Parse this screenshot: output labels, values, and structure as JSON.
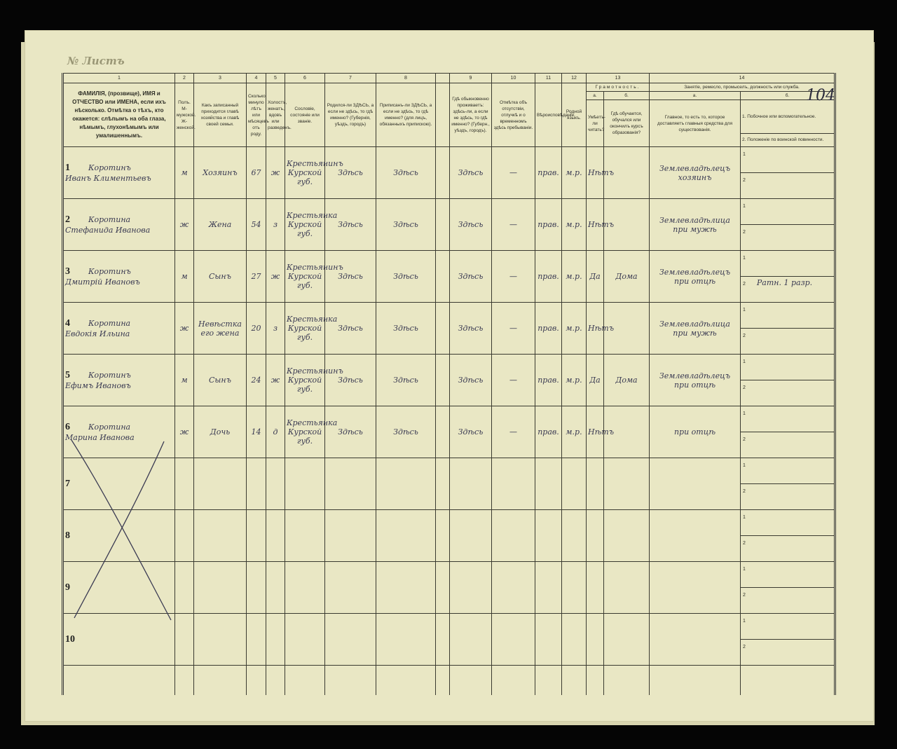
{
  "page_number": "104",
  "margin_note": "№ Листъ",
  "header": {
    "col_numbers": [
      "1",
      "2",
      "3",
      "4",
      "5",
      "6",
      "7",
      "8",
      "9",
      "10",
      "11",
      "12",
      "13",
      "14"
    ],
    "c1": "ФАМИЛІЯ, (прозвище), ИМЯ и ОТЧЕСТВО или ИМЕНА, если ихъ нѣсколько. Отмѣтка о тѣхъ, кто окажется: слѣпымъ на оба глаза, нѣмымъ, глухонѣмымъ или умалишеннымъ.",
    "c2": "Полъ. М-мужской. Ж-женской.",
    "c3": "Какъ записанный приходится главѣ хозяйства и главѣ своей семьи.",
    "c4": "Сколько минуло лѣтъ или мѣсяцевъ отъ роду.",
    "c5": "Холостъ, женатъ, вдовъ или разведенъ.",
    "c6": "Сословіе, состояніе или званіе.",
    "c7": "Родился-ли ЗДѢСЬ, а если не здѣсь, то гдѣ именно? (Губернія, уѣздъ, городъ)",
    "c8": "Приписанъ-ли ЗДѢСЬ, а если не здѣсь, то гдѣ именно? (для лицъ, обязанныхъ припискою).",
    "c9": "Гдѣ обыкновенно проживаетъ: здѣсь-ли, а если не здѣсь, то гдѣ именно? (Губерн., уѣздъ, городъ).",
    "c10": "Отмѣтка объ отсутствіи, отлучкѣ и о временномъ здѣсь пребываніи.",
    "c11": "Вѣроисповѣданіе.",
    "c12": "Родной языкъ.",
    "c13": "Грамотность.",
    "c13a_letter": "а.",
    "c13b_letter": "б.",
    "c13a": "Умѣетъ-ли читать?",
    "c13b": "Гдѣ обучается, обучался или окончилъ курсъ образованія?",
    "c14": "Занятіе, ремесло, промыселъ, должность или служба.",
    "c14a_letter": "а.",
    "c14b_letter": "б.",
    "c14a": "Главное, то есть то, которое доставляетъ главныя средства для существованія.",
    "c14b1": "1. Побочное или вспомогательное.",
    "c14b2": "2. Положеніе по воинской повинности."
  },
  "sub_labels": [
    "1",
    "2"
  ],
  "rows": [
    {
      "n": "1",
      "surname": "Коротинъ",
      "given": "Иванъ Климентьевъ",
      "sex": "м",
      "rel": "Хозяинъ",
      "age": "67",
      "mar": "ж",
      "estate": "Крестьянинъ Курской губ.",
      "born": "Здѣсь",
      "reg": "Здѣсь",
      "lives": "Здѣсь",
      "absent": "—",
      "rel2": "прав.",
      "lang": "м.р.",
      "read": "Нѣтъ",
      "school": "",
      "occ": "Землевладѣлецъ хозяинъ",
      "side": "",
      "mil": ""
    },
    {
      "n": "2",
      "surname": "Коротина",
      "given": "Стефанида Иванова",
      "sex": "ж",
      "rel": "Жена",
      "age": "54",
      "mar": "з",
      "estate": "Крестьянка Курской губ.",
      "born": "Здѣсь",
      "reg": "Здѣсь",
      "lives": "Здѣсь",
      "absent": "—",
      "rel2": "прав.",
      "lang": "м.р.",
      "read": "Нѣтъ",
      "school": "",
      "occ": "Землевладѣлица при мужѣ",
      "side": "",
      "mil": ""
    },
    {
      "n": "3",
      "surname": "Коротинъ",
      "given": "Дмитрій Ивановъ",
      "sex": "м",
      "rel": "Сынъ",
      "age": "27",
      "mar": "ж",
      "estate": "Крестьянинъ Курской губ.",
      "born": "Здѣсь",
      "reg": "Здѣсь",
      "lives": "Здѣсь",
      "absent": "—",
      "rel2": "прав.",
      "lang": "м.р.",
      "read": "Да",
      "school": "Дома",
      "occ": "Землевладѣлецъ при отцѣ",
      "side": "",
      "mil": "Ратн. 1 разр."
    },
    {
      "n": "4",
      "surname": "Коротина",
      "given": "Евдокія Ильина",
      "sex": "ж",
      "rel": "Невѣстка его жена",
      "age": "20",
      "mar": "з",
      "estate": "Крестьянка Курской губ.",
      "born": "Здѣсь",
      "reg": "Здѣсь",
      "lives": "Здѣсь",
      "absent": "—",
      "rel2": "прав.",
      "lang": "м.р.",
      "read": "Нѣтъ",
      "school": "",
      "occ": "Землевладѣлица при мужѣ",
      "side": "",
      "mil": ""
    },
    {
      "n": "5",
      "surname": "Коротинъ",
      "given": "Ефимъ Ивановъ",
      "sex": "м",
      "rel": "Сынъ",
      "age": "24",
      "mar": "ж",
      "estate": "Крестьянинъ Курской губ.",
      "born": "Здѣсь",
      "reg": "Здѣсь",
      "lives": "Здѣсь",
      "absent": "—",
      "rel2": "прав.",
      "lang": "м.р.",
      "read": "Да",
      "school": "Дома",
      "occ": "Землевладѣлецъ при отцѣ",
      "side": "",
      "mil": ""
    },
    {
      "n": "6",
      "surname": "Коротина",
      "given": "Марина Иванова",
      "sex": "ж",
      "rel": "Дочь",
      "age": "14",
      "mar": "д",
      "estate": "Крестьянка Курской губ.",
      "born": "Здѣсь",
      "reg": "Здѣсь",
      "lives": "Здѣсь",
      "absent": "—",
      "rel2": "прав.",
      "lang": "м.р.",
      "read": "Нѣтъ",
      "school": "",
      "occ": "при отцѣ",
      "side": "",
      "mil": ""
    },
    {
      "n": "7"
    },
    {
      "n": "8"
    },
    {
      "n": "9"
    },
    {
      "n": "10"
    }
  ],
  "colors": {
    "paper": "#e9e7c4",
    "ink": "#3a3a52",
    "print": "#2e2e26",
    "background": "#050505"
  }
}
